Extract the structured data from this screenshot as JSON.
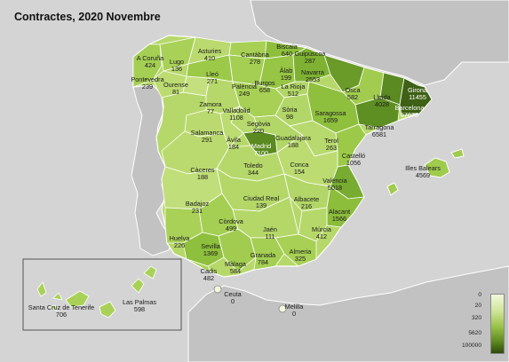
{
  "title": "Contractes, 2020 Novembre",
  "legend": [
    "0",
    "20",
    "320",
    "5620",
    "100000"
  ],
  "provinces": [
    {
      "name": "A Coruña",
      "value": "424"
    },
    {
      "name": "Lugo",
      "value": "136"
    },
    {
      "name": "Asturies",
      "value": "410"
    },
    {
      "name": "Cantàbria",
      "value": "278"
    },
    {
      "name": "Biscaia",
      "value": "640"
    },
    {
      "name": "Guipúscoa",
      "value": "287"
    },
    {
      "name": "Àlab",
      "value": "199"
    },
    {
      "name": "Navarra",
      "value": "2553"
    },
    {
      "name": "Pontevedra",
      "value": "239"
    },
    {
      "name": "Ourense",
      "value": "81"
    },
    {
      "name": "Lleó",
      "value": "271"
    },
    {
      "name": "Palència",
      "value": "249"
    },
    {
      "name": "Burgos",
      "value": "658"
    },
    {
      "name": "La Rioja",
      "value": "512"
    },
    {
      "name": "Osca",
      "value": "582"
    },
    {
      "name": "Lleida",
      "value": "4028"
    },
    {
      "name": "Girona",
      "value": "11455"
    },
    {
      "name": "Barcelona",
      "value": "67675"
    },
    {
      "name": "Zamora",
      "value": "77"
    },
    {
      "name": "Valladolid",
      "value": "1108"
    },
    {
      "name": "Sòria",
      "value": "98"
    },
    {
      "name": "Saragossa",
      "value": "1659"
    },
    {
      "name": "Tarragona",
      "value": "6581"
    },
    {
      "name": "Segòvia",
      "value": "220"
    },
    {
      "name": "Salamanca",
      "value": "291"
    },
    {
      "name": "Àvila",
      "value": "184"
    },
    {
      "name": "Guadalajara",
      "value": "188"
    },
    {
      "name": "Terol",
      "value": "263"
    },
    {
      "name": "Madrid",
      "value": "7100"
    },
    {
      "name": "Castelló",
      "value": "1056"
    },
    {
      "name": "Toledo",
      "value": "344"
    },
    {
      "name": "Conca",
      "value": "154"
    },
    {
      "name": "Càceres",
      "value": "188"
    },
    {
      "name": "Illes Balears",
      "value": "4569"
    },
    {
      "name": "València",
      "value": "5018"
    },
    {
      "name": "Badajoz",
      "value": "231"
    },
    {
      "name": "Ciudad Real",
      "value": "139"
    },
    {
      "name": "Albacete",
      "value": "216"
    },
    {
      "name": "Alacant",
      "value": "1566"
    },
    {
      "name": "Còrdova",
      "value": "499"
    },
    {
      "name": "Jaén",
      "value": "111"
    },
    {
      "name": "Múrcia",
      "value": "412"
    },
    {
      "name": "Huelva",
      "value": "226"
    },
    {
      "name": "Sevilla",
      "value": "1369"
    },
    {
      "name": "Granada",
      "value": "784"
    },
    {
      "name": "Almeria",
      "value": "325"
    },
    {
      "name": "Màlaga",
      "value": "584"
    },
    {
      "name": "Cadis",
      "value": "482"
    },
    {
      "name": "Ceuta",
      "value": "0"
    },
    {
      "name": "Melilla",
      "value": "0"
    },
    {
      "name": "Santa Cruz de Tenerife",
      "value": "706"
    },
    {
      "name": "Las Palmas",
      "value": "598"
    }
  ]
}
